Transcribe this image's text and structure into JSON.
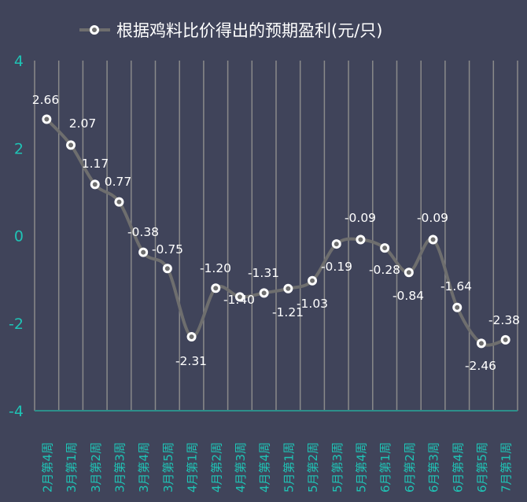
{
  "chart_data": {
    "type": "line",
    "title": "",
    "legend": {
      "position": "top",
      "entries": [
        "根据鸡料比价得出的预期盈利(元/只)"
      ]
    },
    "series": [
      {
        "name": "根据鸡料比价得出的预期盈利(元/只)",
        "values": [
          2.66,
          2.07,
          1.17,
          0.77,
          -0.38,
          -0.75,
          -2.31,
          -1.2,
          -1.4,
          -1.31,
          -1.21,
          -1.03,
          -0.19,
          -0.09,
          -0.28,
          -0.84,
          -0.09,
          -1.64,
          -2.46,
          -2.38
        ],
        "labels": [
          "2.66",
          "2.07",
          "1.17",
          "0.77",
          "-0.38",
          "-0.75",
          "-2.31",
          "-1.20",
          "-1.40",
          "-1.31",
          "-1.21",
          "-1.03",
          "-0.19",
          "-0.09",
          "-0.28",
          "-0.84",
          "-0.09",
          "-1.64",
          "-2.46",
          "-2.38"
        ]
      }
    ],
    "categories": [
      "2月第4周",
      "3月第1周",
      "3月第2周",
      "3月第3周",
      "3月第4周",
      "3月第5周",
      "4月第1周",
      "4月第2周",
      "4月第3周",
      "4月第4周",
      "5月第1周",
      "5月第2周",
      "5月第3周",
      "5月第4周",
      "6月第1周",
      "6月第2周",
      "6月第3周",
      "6月第4周",
      "6月第5周",
      "7月第1周"
    ],
    "yticks": [
      "4",
      "2",
      "0",
      "-2",
      "-4"
    ],
    "ylim": [
      -4,
      4
    ],
    "xlabel": "",
    "ylabel": "",
    "grid": "vertical",
    "colors": {
      "line": "#6e6e6e",
      "marker_fill": "#6e6e6e",
      "marker_edge": "#ffffff",
      "tick": "#1fc3b5",
      "grid": "#8a8a8a",
      "background": "#40445a"
    }
  }
}
